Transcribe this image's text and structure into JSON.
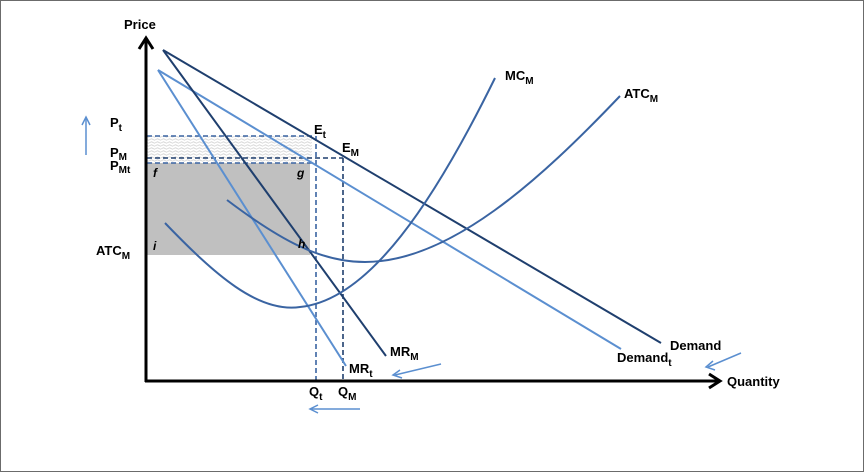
{
  "axes": {
    "y_title": "Price",
    "x_title": "Quantity"
  },
  "curves": {
    "mc": {
      "main": "MC",
      "sub": "M"
    },
    "atc": {
      "main": "ATC",
      "sub": "M"
    },
    "mr_m": {
      "main": "MR",
      "sub": "M"
    },
    "mr_t": {
      "main": "MR",
      "sub": "t"
    },
    "demand": {
      "main": "Demand"
    },
    "demand_t": {
      "main": "Demand",
      "sub": "t"
    }
  },
  "price_labels": {
    "pt": {
      "main": "P",
      "sub": "t"
    },
    "pm": {
      "main": "P",
      "sub": "M"
    },
    "pmt": {
      "main": "P",
      "sub": "Mt"
    },
    "atcm": {
      "main": "ATC",
      "sub": "M"
    }
  },
  "quantity_labels": {
    "qt": {
      "main": "Q",
      "sub": "t"
    },
    "qm": {
      "main": "Q",
      "sub": "M"
    }
  },
  "points": {
    "et": {
      "main": "E",
      "sub": "t"
    },
    "em": {
      "main": "E",
      "sub": "M"
    },
    "f": "f",
    "g": "g",
    "h": "h",
    "i": "i"
  },
  "colors": {
    "dark_blue": "#1f3f6e",
    "light_blue": "#5b8fd0",
    "mid_blue": "#3a64a2",
    "profit_fill": "#c0c0c0",
    "hatch": "#d4d4d4"
  }
}
